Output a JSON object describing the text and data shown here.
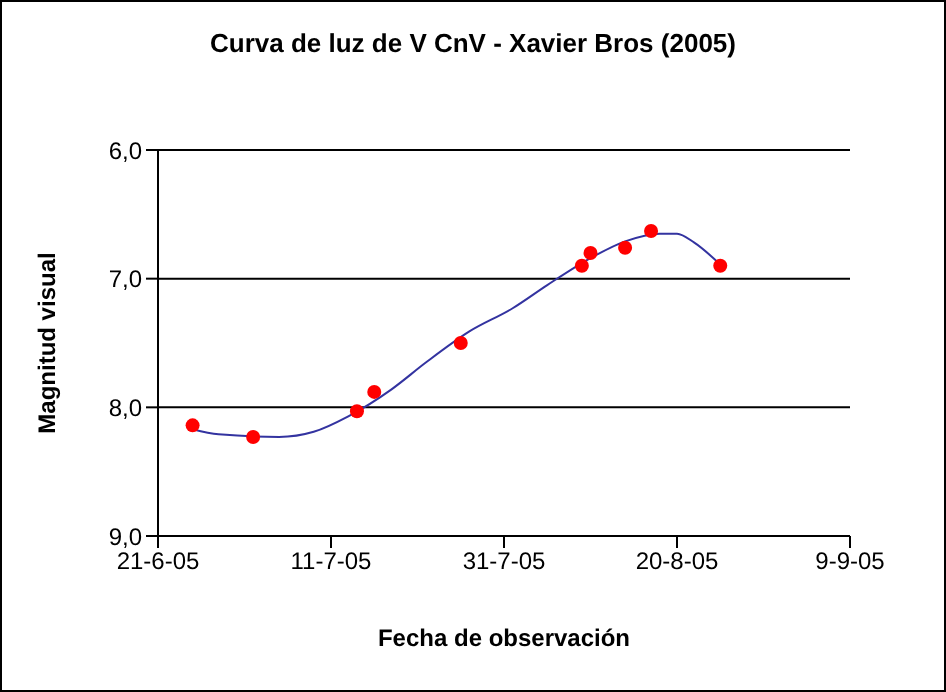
{
  "chart_data": {
    "type": "scatter",
    "title": "Curva de luz de V CnV - Xavier Bros (2005)",
    "xlabel": "Fecha de observación",
    "ylabel": "Magnitud visual",
    "series": [
      {
        "color": "#ff0000",
        "marker": "circle",
        "x": [
          "2005-06-25",
          "2005-07-02",
          "2005-07-14",
          "2005-07-16",
          "2005-07-26",
          "2005-08-09",
          "2005-08-10",
          "2005-08-14",
          "2005-08-17",
          "2005-08-25"
        ],
        "values": [
          8.14,
          8.23,
          8.03,
          7.88,
          7.5,
          6.9,
          6.8,
          6.76,
          6.63,
          6.9
        ]
      },
      {
        "type": "line",
        "color": "#3333a0",
        "marker": "none",
        "line_style": "solid",
        "x": [
          "2005-06-25",
          "2005-06-28",
          "2005-07-05",
          "2005-07-09",
          "2005-07-13",
          "2005-07-18",
          "2005-07-22",
          "2005-07-27",
          "2005-08-01",
          "2005-08-05",
          "2005-08-10",
          "2005-08-14",
          "2005-08-18",
          "2005-08-20",
          "2005-08-22",
          "2005-08-25"
        ],
        "values": [
          8.17,
          8.21,
          8.23,
          8.19,
          8.07,
          7.86,
          7.65,
          7.41,
          7.23,
          7.05,
          6.84,
          6.71,
          6.65,
          6.65,
          6.72,
          6.89
        ]
      }
    ],
    "xlim": [
      "2005-06-21",
      "2005-09-09"
    ],
    "xticks": [
      {
        "value": "2005-06-21",
        "label": "21-6-05"
      },
      {
        "value": "2005-07-11",
        "label": "11-7-05"
      },
      {
        "value": "2005-07-31",
        "label": "31-7-05"
      },
      {
        "value": "2005-08-20",
        "label": "20-8-05"
      },
      {
        "value": "2005-09-09",
        "label": "9-9-05"
      }
    ],
    "ylim": [
      9,
      6
    ],
    "yticks": [
      {
        "value": 6,
        "label": "6,0"
      },
      {
        "value": 7,
        "label": "7,0"
      },
      {
        "value": 8,
        "label": "8,0"
      },
      {
        "value": 9,
        "label": "9,0"
      }
    ],
    "grid": "y"
  }
}
